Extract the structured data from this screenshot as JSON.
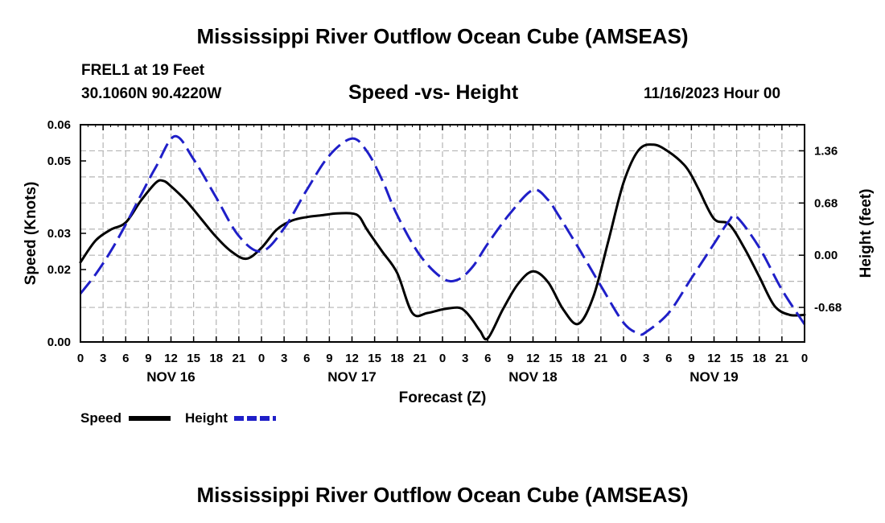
{
  "header": {
    "title": "Mississippi River Outflow Ocean Cube (AMSEAS)",
    "station": "FREL1 at 19 Feet",
    "coords": "30.1060N  90.4220W",
    "subtitle": "Speed -vs- Height",
    "datetime": "11/16/2023 Hour 00"
  },
  "footer": {
    "title": "Mississippi River Outflow Ocean Cube (AMSEAS)"
  },
  "colors": {
    "speed": "#000000",
    "height": "#1f1fc8",
    "grid": "#b4b4b4"
  },
  "chart_data": {
    "type": "line",
    "title": "Speed -vs- Height",
    "xlabel": "Forecast (Z)",
    "ylabel": "Speed (Knots)",
    "y2label": "Height (feet)",
    "xlim": [
      0,
      96
    ],
    "ylim": [
      0,
      0.06
    ],
    "y2lim": [
      -1.13,
      1.7
    ],
    "grid": true,
    "x_ticks": [
      0,
      3,
      6,
      9,
      12,
      15,
      18,
      21,
      24,
      27,
      30,
      33,
      36,
      39,
      42,
      45,
      48,
      51,
      54,
      57,
      60,
      63,
      66,
      69,
      72,
      75,
      78,
      81,
      84,
      87,
      90,
      93,
      96
    ],
    "x_tick_labels": [
      "0",
      "3",
      "6",
      "9",
      "12",
      "15",
      "18",
      "21",
      "0",
      "3",
      "6",
      "9",
      "12",
      "15",
      "18",
      "21",
      "0",
      "3",
      "6",
      "9",
      "12",
      "15",
      "18",
      "21",
      "0",
      "3",
      "6",
      "9",
      "12",
      "15",
      "18",
      "21",
      "0"
    ],
    "y_ticks": [
      0,
      0.02,
      0.03,
      0.05,
      0.06
    ],
    "y_tick_labels": [
      "0.00",
      "0.02",
      "0.03",
      "0.05",
      "0.06"
    ],
    "y2_ticks": [
      -0.68,
      0,
      0.68,
      1.36
    ],
    "y2_tick_labels": [
      "-0.68",
      "0.00",
      "0.68",
      "1.36"
    ],
    "day_labels": [
      {
        "x": 12,
        "label": "NOV 16"
      },
      {
        "x": 36,
        "label": "NOV 17"
      },
      {
        "x": 60,
        "label": "NOV 18"
      },
      {
        "x": 84,
        "label": "NOV 19"
      }
    ],
    "series": [
      {
        "name": "Speed",
        "axis": "left",
        "style": "solid",
        "x": [
          0,
          2,
          4,
          6,
          8,
          10,
          11,
          12,
          14,
          16,
          18,
          20,
          22,
          24,
          26,
          28,
          30,
          32,
          34,
          36,
          37,
          38,
          40,
          42,
          44,
          46,
          48,
          50,
          51,
          52,
          53,
          54,
          56,
          58,
          60,
          62,
          64,
          66,
          68,
          70,
          72,
          74,
          76,
          78,
          80,
          81,
          82,
          84,
          86,
          88,
          90,
          92,
          94,
          96
        ],
        "values": [
          0.022,
          0.028,
          0.031,
          0.033,
          0.039,
          0.044,
          0.0445,
          0.043,
          0.039,
          0.034,
          0.029,
          0.025,
          0.023,
          0.026,
          0.031,
          0.0335,
          0.0345,
          0.035,
          0.0355,
          0.0355,
          0.0345,
          0.031,
          0.025,
          0.019,
          0.008,
          0.008,
          0.009,
          0.0095,
          0.0085,
          0.006,
          0.003,
          0.001,
          0.009,
          0.016,
          0.0195,
          0.0165,
          0.009,
          0.005,
          0.0125,
          0.028,
          0.044,
          0.053,
          0.0545,
          0.0525,
          0.049,
          0.046,
          0.042,
          0.034,
          0.0325,
          0.026,
          0.018,
          0.01,
          0.0075,
          0.0075
        ]
      },
      {
        "name": "Height",
        "axis": "right",
        "style": "dashed",
        "x": [
          0,
          2,
          4,
          6,
          8,
          10,
          12.5,
          15,
          18,
          21,
          24,
          27,
          30,
          33,
          36,
          38,
          40,
          42,
          45,
          48,
          50,
          52,
          54,
          57,
          60,
          62,
          63,
          66,
          69,
          72,
          74,
          75,
          78,
          81,
          84,
          86,
          87,
          90,
          93,
          96
        ],
        "values": [
          -0.5,
          -0.25,
          0.05,
          0.4,
          0.78,
          1.15,
          1.55,
          1.25,
          0.75,
          0.25,
          0.05,
          0.35,
          0.85,
          1.3,
          1.52,
          1.35,
          0.98,
          0.52,
          0.0,
          -0.3,
          -0.32,
          -0.15,
          0.15,
          0.55,
          0.85,
          0.72,
          0.58,
          0.1,
          -0.4,
          -0.88,
          -1.02,
          -1.0,
          -0.75,
          -0.3,
          0.15,
          0.45,
          0.5,
          0.1,
          -0.45,
          -0.9
        ]
      }
    ],
    "legend": [
      {
        "label": "Speed",
        "style": "solid"
      },
      {
        "label": "Height",
        "style": "dashed"
      }
    ]
  }
}
